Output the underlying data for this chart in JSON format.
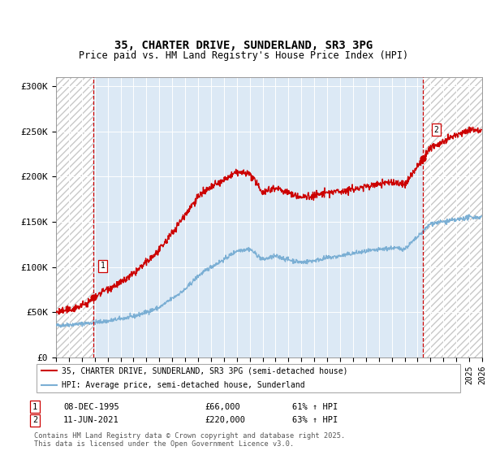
{
  "title": "35, CHARTER DRIVE, SUNDERLAND, SR3 3PG",
  "subtitle": "Price paid vs. HM Land Registry's House Price Index (HPI)",
  "ylim": [
    0,
    310000
  ],
  "yticks": [
    0,
    50000,
    100000,
    150000,
    200000,
    250000,
    300000
  ],
  "ytick_labels": [
    "£0",
    "£50K",
    "£100K",
    "£150K",
    "£200K",
    "£250K",
    "£300K"
  ],
  "x_start_year": 1993,
  "x_end_year": 2026,
  "hpi_color": "#7bafd4",
  "price_color": "#cc0000",
  "marker1_year": 1995.92,
  "marker1_price": 66000,
  "marker2_year": 2021.44,
  "marker2_price": 220000,
  "legend_label1": "35, CHARTER DRIVE, SUNDERLAND, SR3 3PG (semi-detached house)",
  "legend_label2": "HPI: Average price, semi-detached house, Sunderland",
  "table_row1": [
    "1",
    "08-DEC-1995",
    "£66,000",
    "61% ↑ HPI"
  ],
  "table_row2": [
    "2",
    "11-JUN-2021",
    "£220,000",
    "63% ↑ HPI"
  ],
  "footnote": "Contains HM Land Registry data © Crown copyright and database right 2025.\nThis data is licensed under the Open Government Licence v3.0.",
  "bg_color": "#dce9f5",
  "dashed_line_color": "#cc0000",
  "hatch_edgecolor": "#c8c8c8"
}
